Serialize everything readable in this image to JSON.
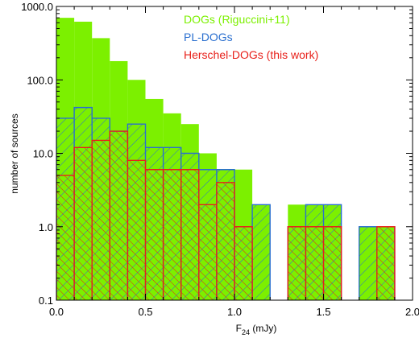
{
  "chart_data": {
    "type": "bar",
    "title": "",
    "xlabel_main": "F",
    "xlabel_sub": "24",
    "xlabel_unit": " (mJy)",
    "ylabel": "number of sources",
    "xlim": [
      0.0,
      2.0
    ],
    "ylim": [
      0.1,
      1000.0
    ],
    "yscale": "log",
    "bin_width": 0.1,
    "x_ticks": [
      "0.0",
      "0.5",
      "1.0",
      "1.5",
      "2.0"
    ],
    "y_ticks": [
      "0.1",
      "1.0",
      "10.0",
      "100.0",
      "1000.0"
    ],
    "legend_position": "top-right",
    "series": [
      {
        "name": "DOGs (Riguccini+11)",
        "color": "#7cf000",
        "style": "filled",
        "bins": [
          [
            0.05,
            700
          ],
          [
            0.15,
            620
          ],
          [
            0.25,
            370
          ],
          [
            0.35,
            180
          ],
          [
            0.45,
            100
          ],
          [
            0.55,
            55
          ],
          [
            0.65,
            35
          ],
          [
            0.75,
            25
          ],
          [
            0.85,
            10
          ],
          [
            0.95,
            6
          ],
          [
            1.05,
            6
          ],
          [
            1.15,
            2
          ],
          [
            1.35,
            2
          ],
          [
            1.45,
            2
          ],
          [
            1.55,
            2
          ],
          [
            1.75,
            1
          ],
          [
            1.85,
            1
          ]
        ]
      },
      {
        "name": "PL-DOGs",
        "color": "#2a6fcf",
        "style": "hatched",
        "bins": [
          [
            0.05,
            30
          ],
          [
            0.15,
            42
          ],
          [
            0.25,
            30
          ],
          [
            0.35,
            20
          ],
          [
            0.45,
            25
          ],
          [
            0.55,
            12
          ],
          [
            0.65,
            12
          ],
          [
            0.75,
            10
          ],
          [
            0.85,
            6
          ],
          [
            0.95,
            6
          ],
          [
            1.05,
            1
          ],
          [
            1.15,
            2
          ],
          [
            1.35,
            1
          ],
          [
            1.45,
            2
          ],
          [
            1.55,
            2
          ],
          [
            1.75,
            1
          ],
          [
            1.85,
            1
          ]
        ]
      },
      {
        "name": "Herschel-DOGs (this work)",
        "color": "#e8201a",
        "style": "hatched",
        "bins": [
          [
            0.05,
            5
          ],
          [
            0.15,
            12
          ],
          [
            0.25,
            15
          ],
          [
            0.35,
            20
          ],
          [
            0.45,
            8
          ],
          [
            0.55,
            6
          ],
          [
            0.65,
            6
          ],
          [
            0.75,
            6
          ],
          [
            0.85,
            2
          ],
          [
            0.95,
            4
          ],
          [
            1.05,
            1
          ],
          [
            1.35,
            1
          ],
          [
            1.45,
            1
          ],
          [
            1.55,
            1
          ],
          [
            1.85,
            1
          ]
        ]
      }
    ]
  }
}
